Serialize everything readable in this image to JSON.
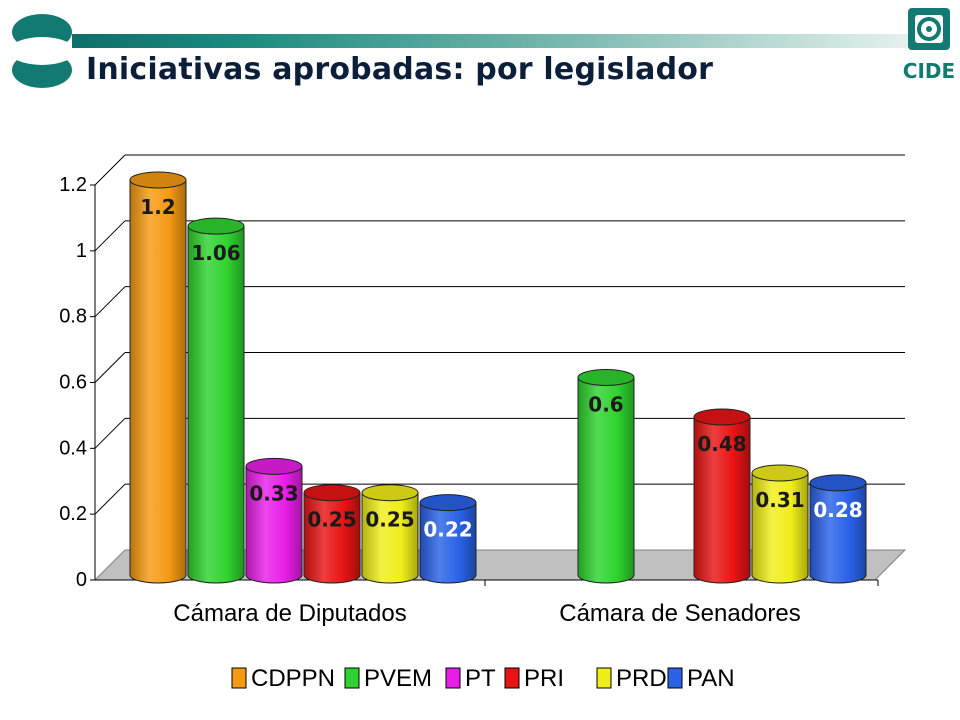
{
  "header": {
    "title": "Iniciativas aprobadas: por legislador",
    "logo_text": "CIDE"
  },
  "chart_data": {
    "type": "bar",
    "title": "Iniciativas aprobadas: por legislador",
    "xlabel": "",
    "ylabel": "",
    "ylim": [
      0,
      1.2
    ],
    "yticks": [
      "0",
      "0.2",
      "0.4",
      "0.6",
      "0.8",
      "1",
      "1.2"
    ],
    "grid": true,
    "legend_position": "bottom",
    "categories": [
      "Cámara de Diputados",
      "Cámara de Senadores"
    ],
    "series": [
      {
        "name": "CDPPN",
        "color": "#f59a12",
        "values": [
          1.2,
          null
        ],
        "labels": [
          "1.2",
          ""
        ]
      },
      {
        "name": "PVEM",
        "color": "#2fd32f",
        "values": [
          1.06,
          0.6
        ],
        "labels": [
          "1.06",
          "0.6"
        ]
      },
      {
        "name": "PT",
        "color": "#e81ee8",
        "values": [
          0.33,
          null
        ],
        "labels": [
          "0.33",
          ""
        ]
      },
      {
        "name": "PRI",
        "color": "#e81414",
        "values": [
          0.25,
          0.48
        ],
        "labels": [
          "0.25",
          "0.48"
        ]
      },
      {
        "name": "PRD",
        "color": "#f0ee18",
        "values": [
          0.25,
          0.31
        ],
        "labels": [
          "0.25",
          "0.31"
        ]
      },
      {
        "name": "PAN",
        "color": "#2a62e8",
        "values": [
          0.22,
          0.28
        ],
        "labels": [
          "0.22",
          "0.28"
        ]
      }
    ],
    "colors": {
      "grid": "#000000",
      "floor": "#c0c0c0",
      "dark_label": "#1a1a1a",
      "light_label": "#ffffff"
    }
  }
}
